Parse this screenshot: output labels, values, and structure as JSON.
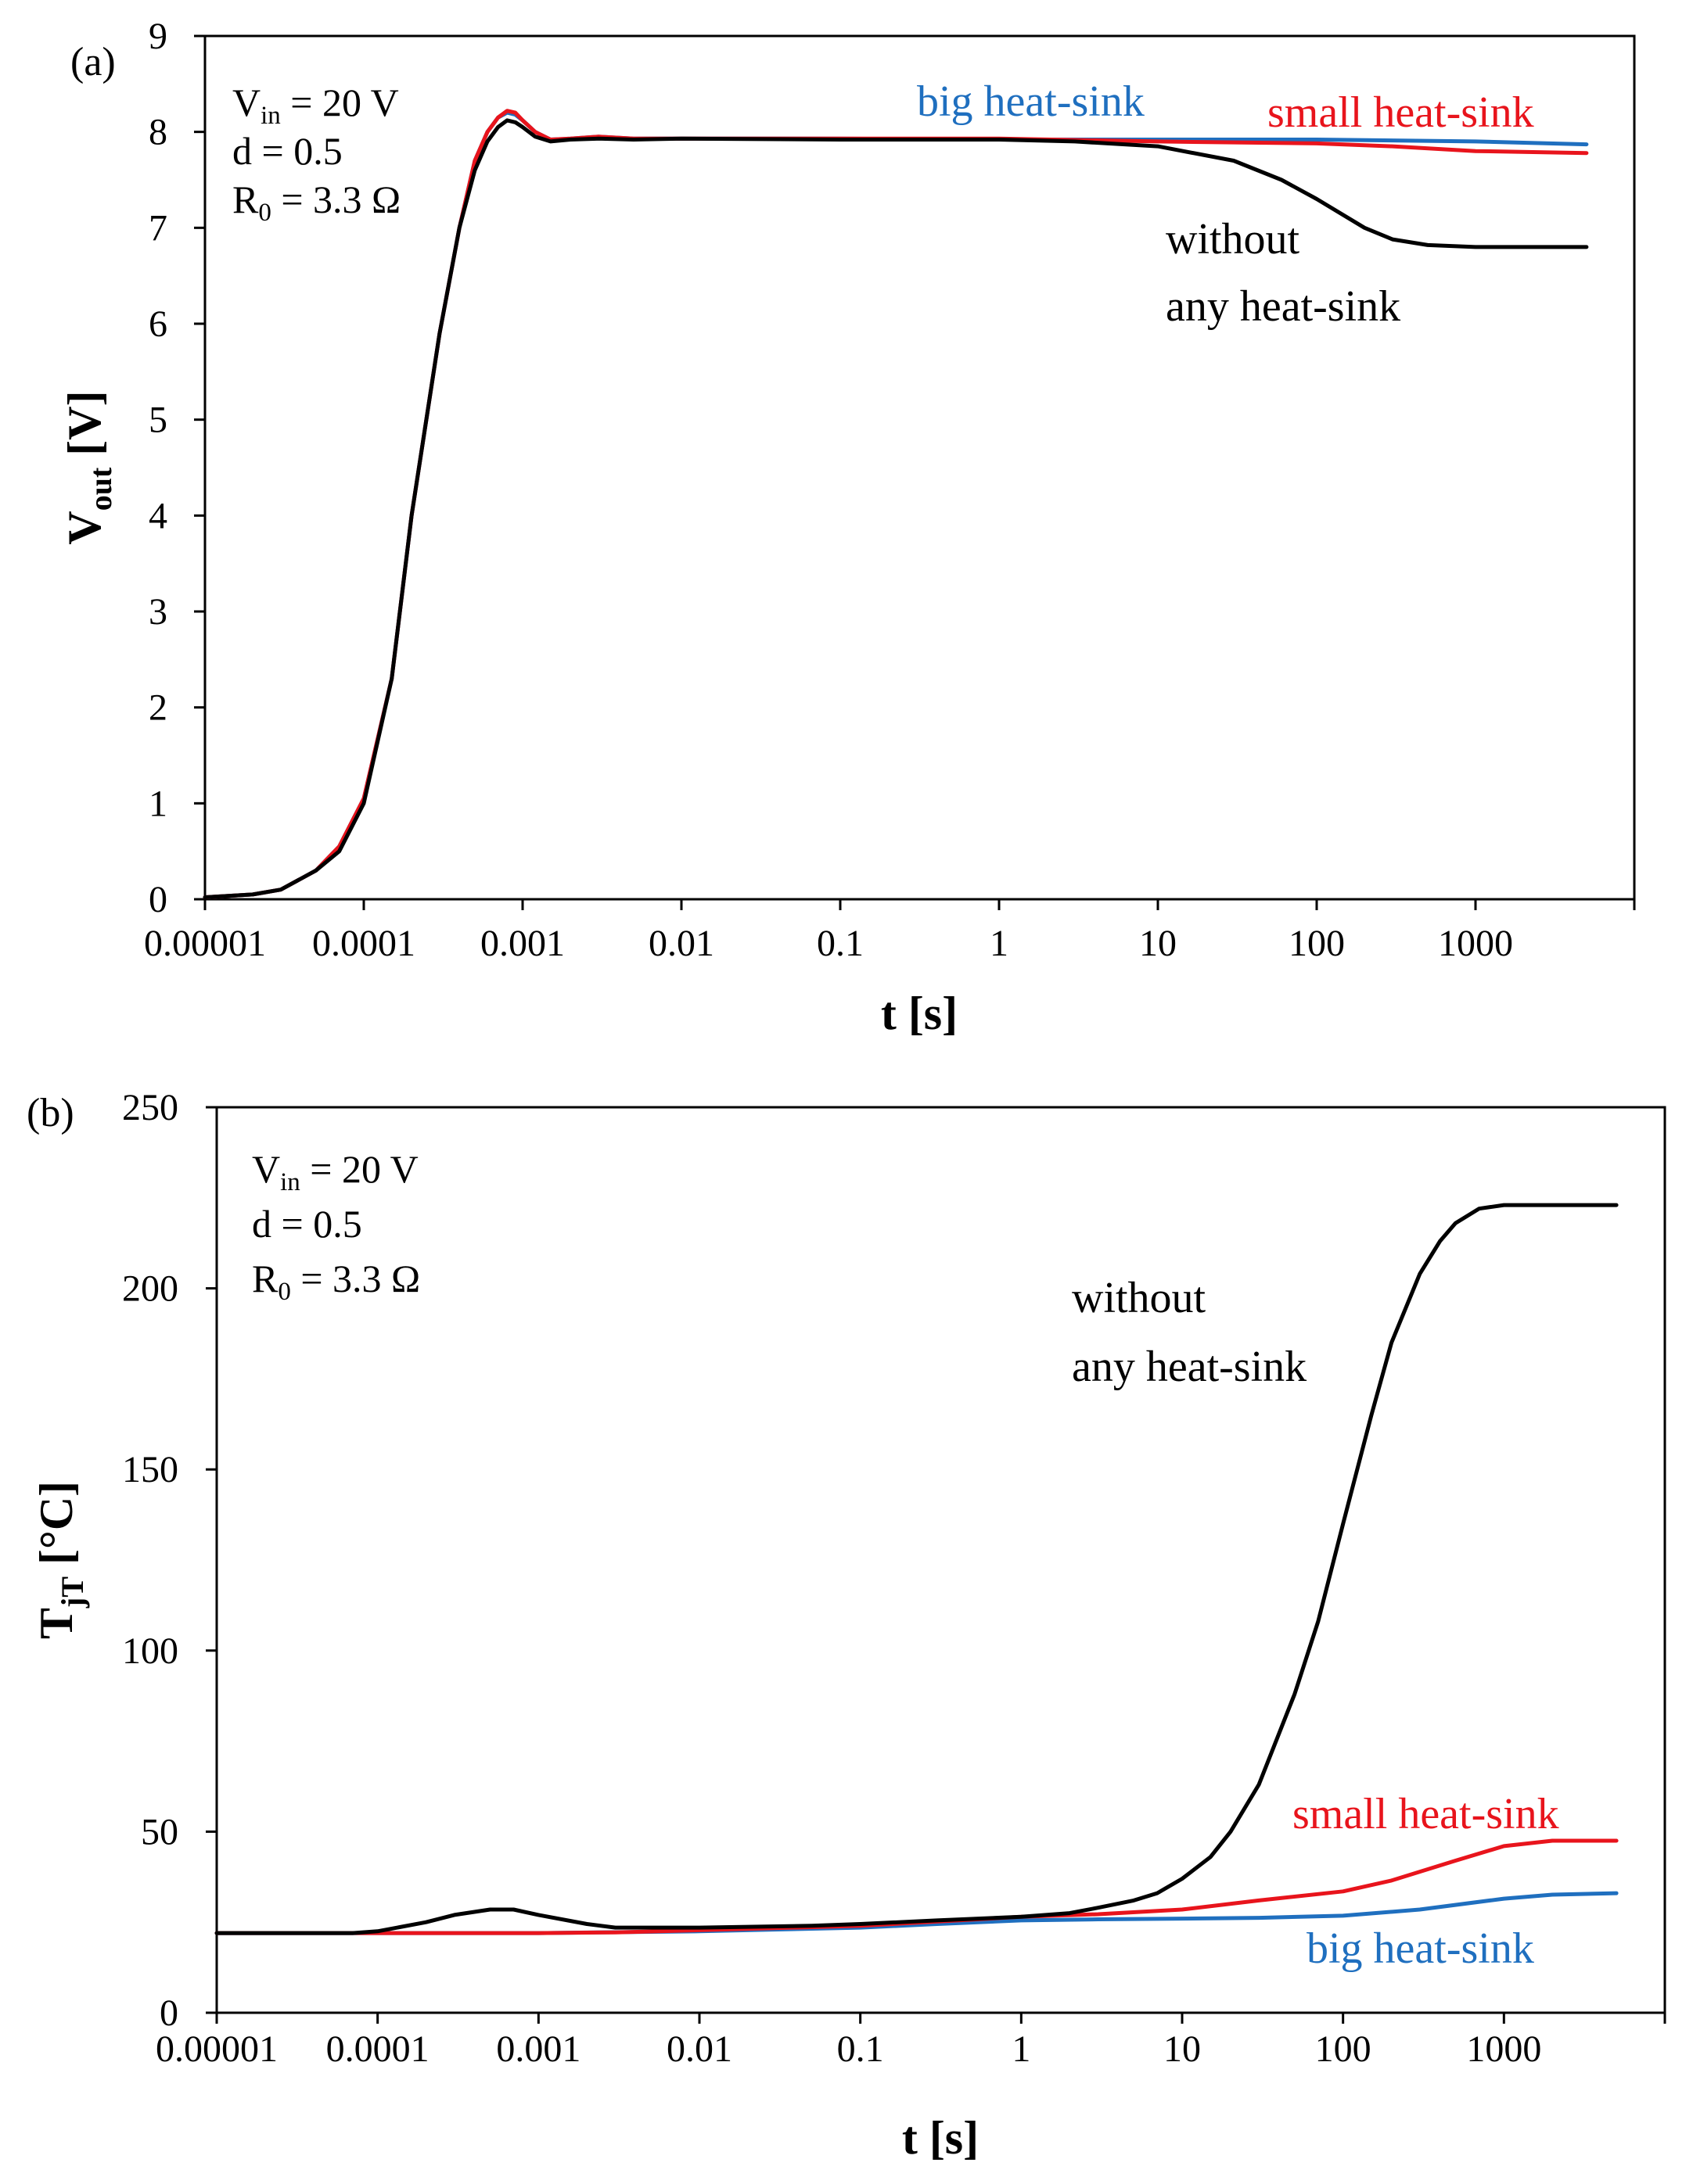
{
  "colors": {
    "big": "#1f6fbf",
    "small": "#e8141c",
    "none": "#000000"
  },
  "chart_data": [
    {
      "type": "line",
      "panel_label": "(a)",
      "title": "",
      "xscale": "log",
      "xlabel": {
        "main": "t [s]"
      },
      "ylabel": {
        "main": "V",
        "sub": "out",
        "unit": " [V]"
      },
      "xlim": [
        1e-05,
        10000
      ],
      "ylim": [
        0,
        9
      ],
      "xticks": [
        "0.00001",
        "0.0001",
        "0.001",
        "0.01",
        "0.1",
        "1",
        "10",
        "100",
        "1000"
      ],
      "yticks": [
        "0",
        "1",
        "2",
        "3",
        "4",
        "5",
        "6",
        "7",
        "8",
        "9"
      ],
      "conditions": {
        "vin": {
          "a": "V",
          "b": "in",
          "c": " = 20 V"
        },
        "d": {
          "a": "d = 0.5"
        },
        "r0": {
          "a": "R",
          "b": "0",
          "c": " = 3.3 Ω"
        }
      },
      "series": [
        {
          "name": "big heat-sink",
          "color_key": "big",
          "x": [
            1e-05,
            2e-05,
            3e-05,
            5e-05,
            7e-05,
            0.0001,
            0.00015,
            0.0002,
            0.0003,
            0.0004,
            0.0005,
            0.0006,
            0.0007,
            0.0008,
            0.0009,
            0.001,
            0.0012,
            0.0015,
            0.002,
            0.003,
            0.005,
            0.01,
            0.1,
            1,
            10,
            100,
            1000,
            5000
          ],
          "y": [
            0.02,
            0.05,
            0.1,
            0.3,
            0.55,
            1.05,
            2.3,
            4.0,
            5.9,
            7.0,
            7.7,
            8.0,
            8.15,
            8.2,
            8.18,
            8.12,
            8.0,
            7.92,
            7.93,
            7.95,
            7.93,
            7.93,
            7.93,
            7.92,
            7.92,
            7.92,
            7.9,
            7.87
          ]
        },
        {
          "name": "small heat-sink",
          "color_key": "small",
          "x": [
            1e-05,
            2e-05,
            3e-05,
            5e-05,
            7e-05,
            0.0001,
            0.00015,
            0.0002,
            0.0003,
            0.0004,
            0.0005,
            0.0006,
            0.0007,
            0.0008,
            0.0009,
            0.001,
            0.0012,
            0.0015,
            0.002,
            0.003,
            0.005,
            0.01,
            0.1,
            1,
            10,
            100,
            300,
            1000,
            5000
          ],
          "y": [
            0.02,
            0.05,
            0.1,
            0.3,
            0.55,
            1.05,
            2.3,
            4.0,
            5.9,
            7.0,
            7.7,
            8.0,
            8.15,
            8.22,
            8.2,
            8.12,
            8.0,
            7.92,
            7.93,
            7.95,
            7.93,
            7.93,
            7.93,
            7.93,
            7.9,
            7.88,
            7.85,
            7.8,
            7.78
          ]
        },
        {
          "name": "without any heat-sink",
          "color_key": "none",
          "x": [
            1e-05,
            2e-05,
            3e-05,
            5e-05,
            7e-05,
            0.0001,
            0.00015,
            0.0002,
            0.0003,
            0.0004,
            0.0005,
            0.0006,
            0.0007,
            0.0008,
            0.0009,
            0.001,
            0.0012,
            0.0015,
            0.002,
            0.003,
            0.005,
            0.01,
            0.1,
            1,
            3,
            10,
            30,
            60,
            100,
            200,
            300,
            500,
            1000,
            5000
          ],
          "y": [
            0.02,
            0.05,
            0.1,
            0.3,
            0.5,
            1.0,
            2.3,
            4.0,
            5.9,
            7.0,
            7.6,
            7.9,
            8.05,
            8.12,
            8.1,
            8.05,
            7.95,
            7.9,
            7.92,
            7.93,
            7.92,
            7.93,
            7.92,
            7.92,
            7.9,
            7.85,
            7.7,
            7.5,
            7.3,
            7.0,
            6.88,
            6.82,
            6.8,
            6.8
          ]
        }
      ],
      "annotations": {
        "big": "big heat-sink",
        "small": "small heat-sink",
        "none1": "without",
        "none2": "any heat-sink"
      }
    },
    {
      "type": "line",
      "panel_label": "(b)",
      "title": "",
      "xscale": "log",
      "xlabel": {
        "main": "t [s]"
      },
      "ylabel": {
        "main": "T",
        "sub": "jT",
        "unit": " [°C]"
      },
      "xlim": [
        1e-05,
        10000
      ],
      "ylim": [
        0,
        250
      ],
      "xticks": [
        "0.00001",
        "0.0001",
        "0.001",
        "0.01",
        "0.1",
        "1",
        "10",
        "100",
        "1000"
      ],
      "yticks": [
        "0",
        "50",
        "100",
        "150",
        "200",
        "250"
      ],
      "conditions": {
        "vin": {
          "a": "V",
          "b": "in",
          "c": " = 20 V"
        },
        "d": {
          "a": "d = 0.5"
        },
        "r0": {
          "a": "R",
          "b": "0",
          "c": " = 3.3 Ω"
        }
      },
      "series": [
        {
          "name": "big heat-sink",
          "color_key": "big",
          "x": [
            1e-05,
            0.0001,
            0.001,
            0.01,
            0.1,
            0.3,
            1,
            3,
            10,
            30,
            100,
            300,
            1000,
            2000,
            5000
          ],
          "y": [
            22,
            22,
            22,
            22.5,
            23.5,
            24.5,
            25.5,
            25.8,
            26,
            26.2,
            26.8,
            28.5,
            31.5,
            32.6,
            33
          ]
        },
        {
          "name": "small heat-sink",
          "color_key": "small",
          "x": [
            1e-05,
            0.0001,
            0.001,
            0.003,
            0.01,
            0.1,
            1,
            3,
            10,
            30,
            100,
            200,
            500,
            1000,
            2000,
            5000
          ],
          "y": [
            22,
            22,
            22,
            22.2,
            22.8,
            24,
            26.5,
            27.2,
            28.5,
            31,
            33.5,
            36.5,
            42,
            46,
            47.5,
            47.5
          ]
        },
        {
          "name": "without any heat-sink",
          "color_key": "none",
          "x": [
            1e-05,
            7e-05,
            0.0001,
            0.0002,
            0.0003,
            0.0005,
            0.0007,
            0.001,
            0.002,
            0.003,
            0.005,
            0.01,
            0.05,
            0.1,
            0.3,
            1,
            2,
            3,
            5,
            7,
            10,
            15,
            20,
            30,
            50,
            70,
            100,
            150,
            200,
            300,
            400,
            500,
            700,
            1000,
            5000
          ],
          "y": [
            22,
            22,
            22.5,
            25,
            27,
            28.5,
            28.5,
            27,
            24.5,
            23.5,
            23.5,
            23.5,
            24,
            24.5,
            25.5,
            26.5,
            27.5,
            29,
            31,
            33,
            37,
            43,
            50,
            63,
            88,
            108,
            135,
            165,
            185,
            204,
            213,
            218,
            222,
            223,
            223
          ]
        }
      ],
      "annotations": {
        "big": "big heat-sink",
        "small": "small heat-sink",
        "none1": "without",
        "none2": "any heat-sink"
      }
    }
  ]
}
